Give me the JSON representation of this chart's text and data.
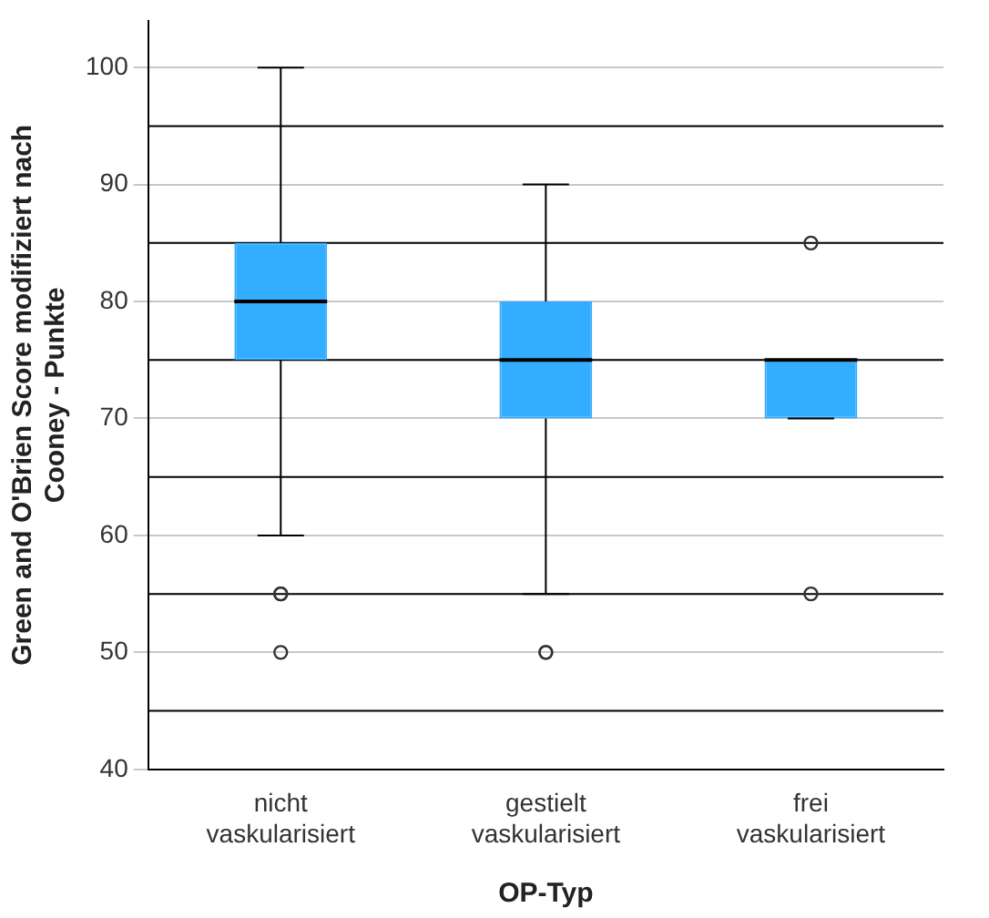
{
  "chart_data": {
    "type": "box",
    "xlabel": "OP-Typ",
    "ylabel": "Green and O'Brien Score modifiziert nach Cooney - Punkte",
    "categories": [
      "nicht vaskularisiert",
      "gestielt vaskularisiert",
      "frei vaskularisiert"
    ],
    "boxes": [
      {
        "low": 60,
        "q1": 75,
        "median": 80,
        "q3": 85,
        "high": 100,
        "outliers": [
          55,
          55,
          50
        ]
      },
      {
        "low": 55,
        "q1": 70,
        "median": 75,
        "q3": 80,
        "high": 90,
        "outliers": [
          50,
          50
        ]
      },
      {
        "low": 70,
        "q1": 70,
        "median": 75,
        "q3": 75,
        "high": 75,
        "outliers": [
          85,
          55
        ]
      }
    ],
    "color": "#33adff",
    "ylim": [
      40,
      104
    ],
    "yticks": [
      40,
      50,
      60,
      70,
      80,
      90,
      100
    ],
    "grid": "y",
    "ref_lines": [
      {
        "axis": "y",
        "value": 45,
        "color": "#000000"
      },
      {
        "axis": "y",
        "value": 55,
        "color": "#000000"
      },
      {
        "axis": "y",
        "value": 65,
        "color": "#000000"
      },
      {
        "axis": "y",
        "value": 75,
        "color": "#000000"
      },
      {
        "axis": "y",
        "value": 85,
        "color": "#000000"
      },
      {
        "axis": "y",
        "value": 95,
        "color": "#000000"
      }
    ]
  }
}
